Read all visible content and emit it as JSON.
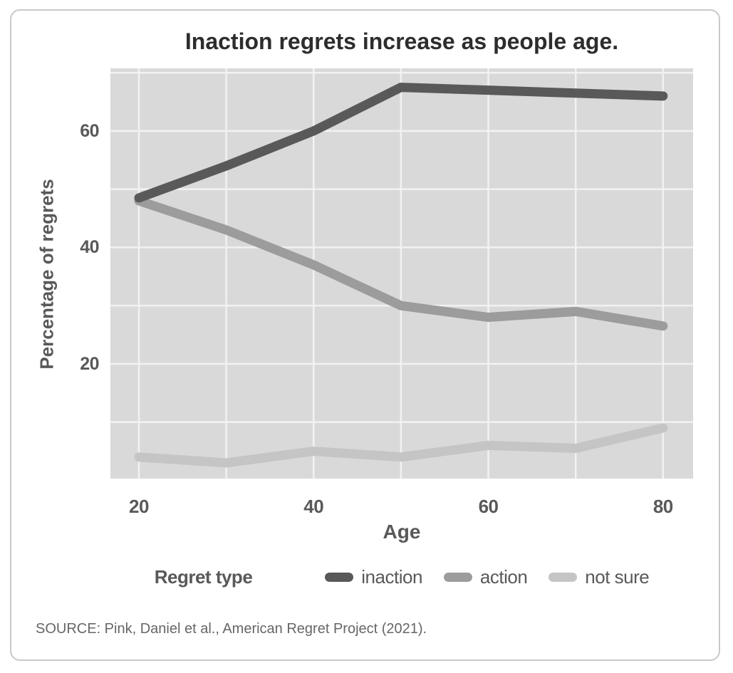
{
  "chart_data": {
    "type": "line",
    "title": "Inaction regrets increase as people age.",
    "xlabel": "Age",
    "ylabel": "Percentage of regrets",
    "x": [
      20,
      30,
      40,
      50,
      60,
      70,
      80
    ],
    "series": [
      {
        "name": "inaction",
        "color": "#595959",
        "values": [
          48.5,
          54,
          60,
          67.5,
          67,
          66.5,
          66
        ]
      },
      {
        "name": "action",
        "color": "#9c9c9c",
        "values": [
          48,
          43,
          37,
          30,
          28,
          29,
          26.5
        ]
      },
      {
        "name": "not sure",
        "color": "#c5c5c5",
        "values": [
          4,
          3,
          5,
          4,
          6,
          5.5,
          9
        ]
      }
    ],
    "xlim": [
      16.74,
      83.44
    ],
    "ylim": [
      0.3,
      70.75
    ],
    "xticks": [
      20,
      40,
      60,
      80
    ],
    "yticks": [
      20,
      40,
      60
    ],
    "grid": {
      "show": true,
      "x_step": 10,
      "y_step": 10,
      "color": "#f2f2f2"
    },
    "legend": {
      "title": "Regret type",
      "position": "bottom"
    },
    "panel_bg": "#d9d9d9",
    "line_width": 13,
    "text_color": "#595959",
    "title_color": "#2d2d2d",
    "source": "SOURCE: Pink, Daniel et al., American Regret Project (2021)."
  }
}
